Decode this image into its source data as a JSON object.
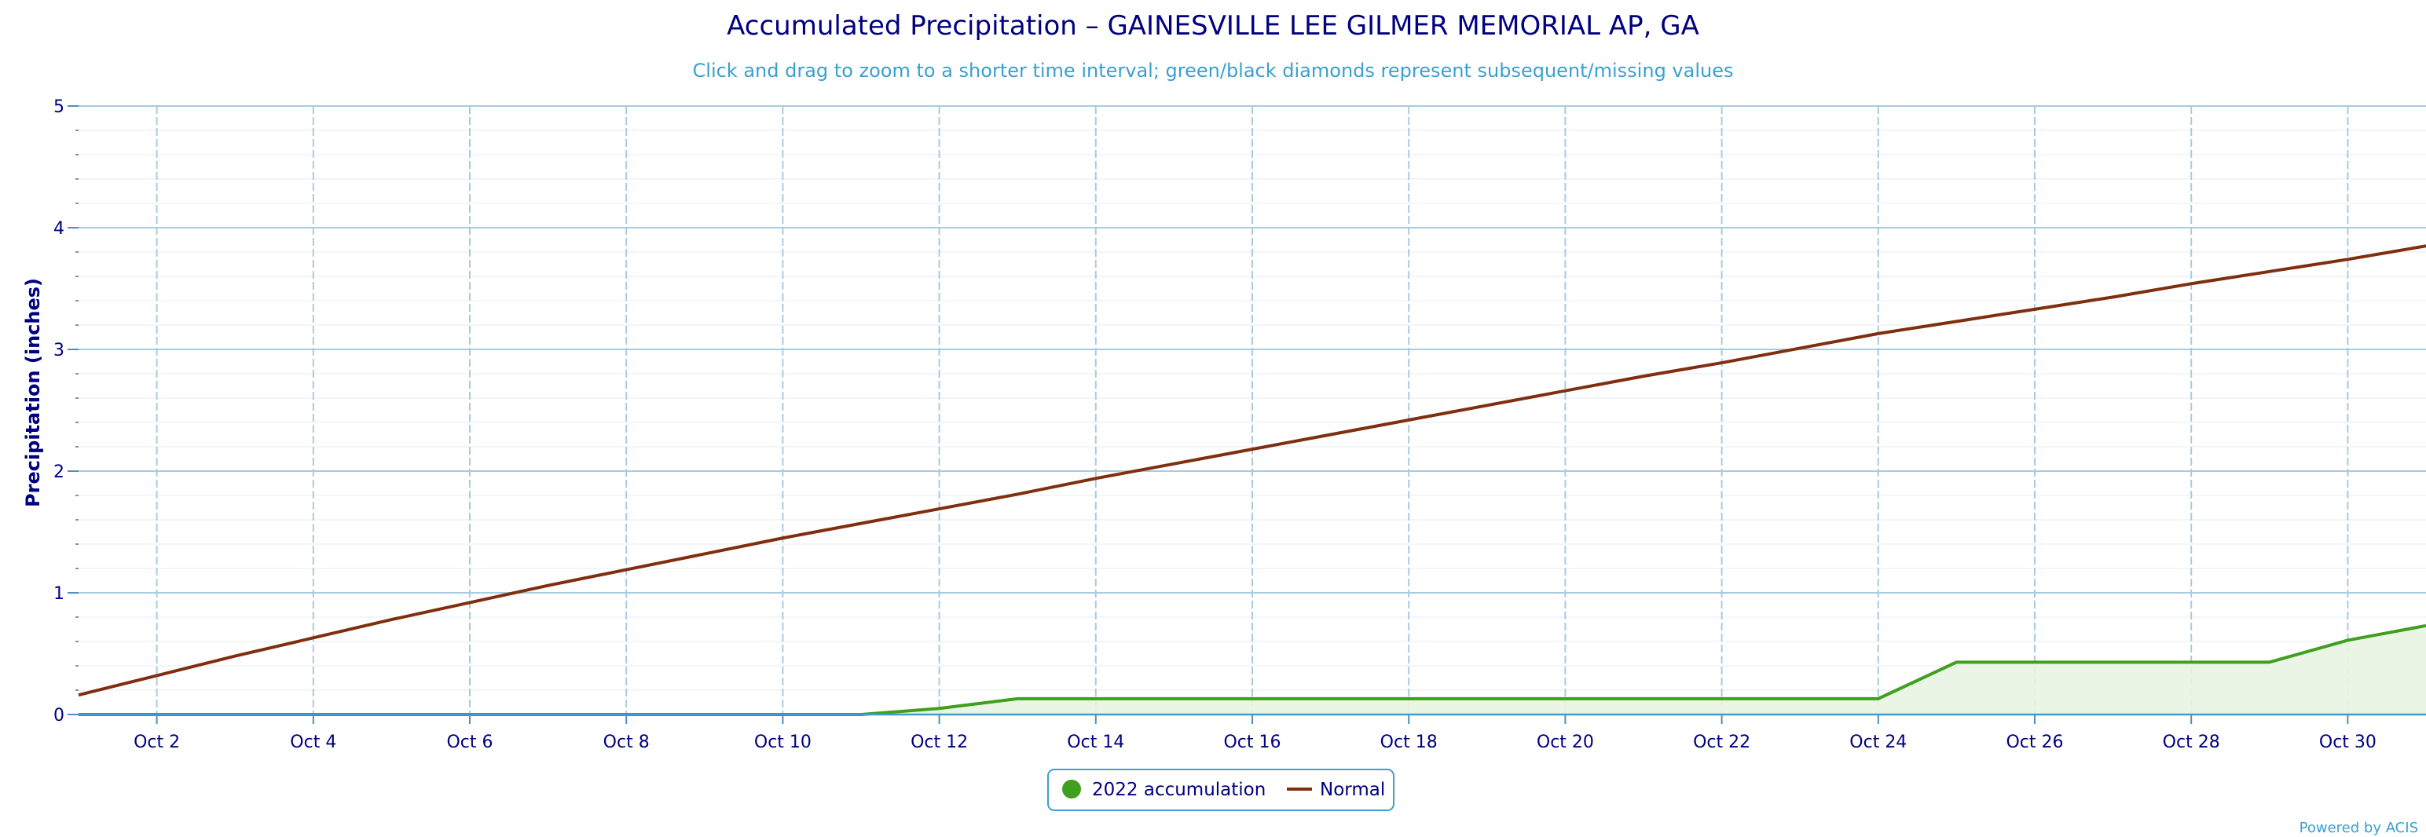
{
  "chart_data": {
    "type": "line",
    "title": "Accumulated Precipitation – GAINESVILLE LEE GILMER MEMORIAL AP, GA",
    "subtitle": "Click and drag to zoom to a shorter time interval; green/black diamonds represent subsequent/missing values",
    "ylabel": "Precipitation (inches)",
    "xlabel": "",
    "ylim": [
      0,
      5
    ],
    "yticks": [
      0,
      1,
      2,
      3,
      4,
      5
    ],
    "xlim": [
      1,
      31
    ],
    "xticks": [
      2,
      4,
      6,
      8,
      10,
      12,
      14,
      16,
      18,
      20,
      22,
      24,
      26,
      28,
      30
    ],
    "xtick_labels": [
      "Oct 2",
      "Oct 4",
      "Oct 6",
      "Oct 8",
      "Oct 10",
      "Oct 12",
      "Oct 14",
      "Oct 16",
      "Oct 18",
      "Oct 20",
      "Oct 22",
      "Oct 24",
      "Oct 26",
      "Oct 28",
      "Oct 30"
    ],
    "grid": true,
    "legend_position": "bottom-center",
    "x": [
      1,
      2,
      3,
      4,
      5,
      6,
      7,
      8,
      9,
      10,
      11,
      12,
      13,
      14,
      15,
      16,
      17,
      18,
      19,
      20,
      21,
      22,
      23,
      24,
      25,
      26,
      27,
      28,
      29,
      30,
      31
    ],
    "series": [
      {
        "name": "2022 accumulation",
        "color": "#3f9f1f",
        "fill": "#e8f4e2",
        "values": [
          0,
          0,
          0,
          0,
          0,
          0,
          0,
          0,
          0,
          0,
          0,
          0.05,
          0.13,
          0.13,
          0.13,
          0.13,
          0.13,
          0.13,
          0.13,
          0.13,
          0.13,
          0.13,
          0.13,
          0.13,
          0.43,
          0.43,
          0.43,
          0.43,
          0.43,
          0.61,
          0.73
        ]
      },
      {
        "name": "Normal",
        "color": "#7f2f0f",
        "values": [
          0.16,
          0.32,
          0.48,
          0.63,
          0.78,
          0.92,
          1.06,
          1.19,
          1.32,
          1.45,
          1.57,
          1.69,
          1.81,
          1.94,
          2.06,
          2.18,
          2.3,
          2.42,
          2.54,
          2.66,
          2.78,
          2.89,
          3.01,
          3.13,
          3.23,
          3.33,
          3.43,
          3.54,
          3.64,
          3.74,
          3.85
        ]
      }
    ],
    "credit": "Powered by ACIS"
  }
}
